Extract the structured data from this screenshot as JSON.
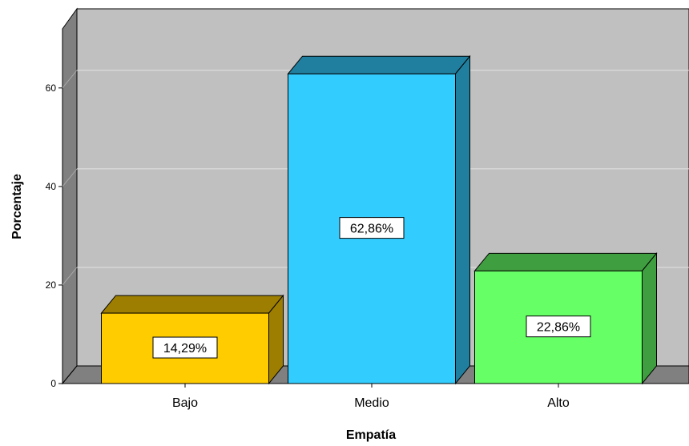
{
  "chart_data": {
    "type": "bar",
    "title": "",
    "xlabel": "Empatía",
    "ylabel": "Porcentaje",
    "categories": [
      "Bajo",
      "Medio",
      "Alto"
    ],
    "values": [
      14.29,
      62.86,
      22.86
    ],
    "value_labels": [
      "14,29%",
      "62,86%",
      "22,86%"
    ],
    "colors": [
      "#ffcc00",
      "#33ccff",
      "#66ff66"
    ],
    "y_ticks": [
      "0",
      "20",
      "40",
      "60"
    ],
    "ylim": [
      0,
      72
    ],
    "grid": true,
    "three_d": true,
    "legend": "none"
  }
}
